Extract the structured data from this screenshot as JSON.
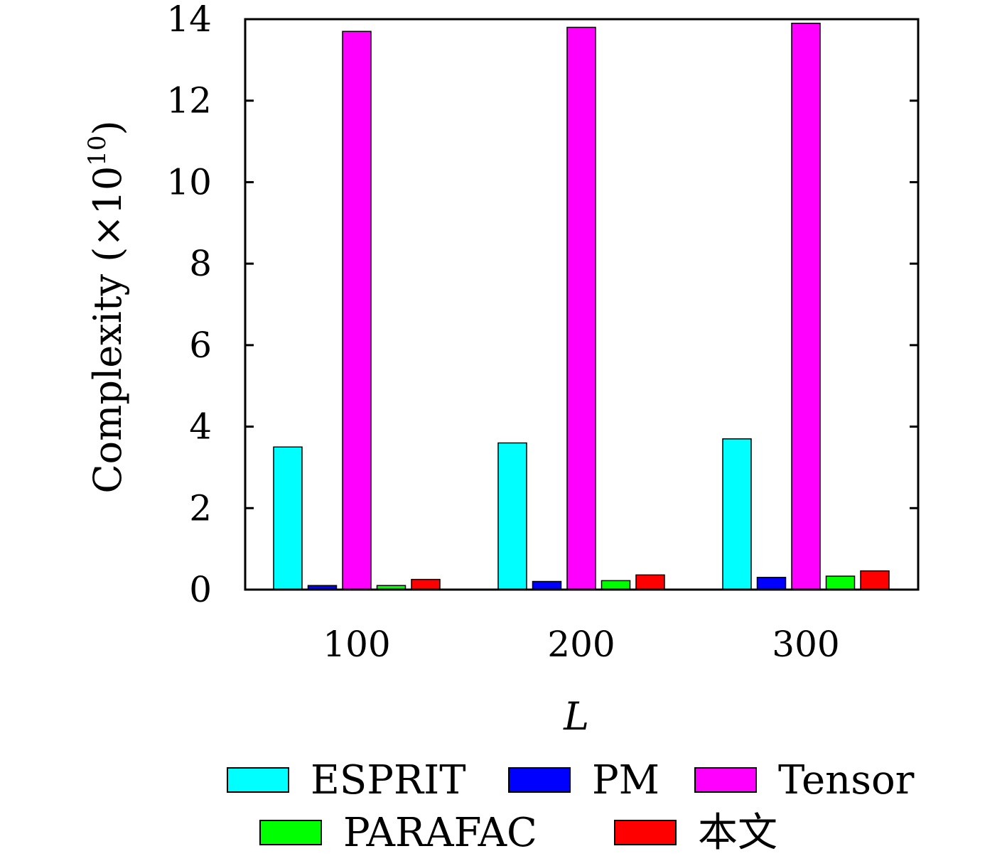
{
  "chart_data": {
    "type": "bar",
    "categories": [
      "100",
      "200",
      "300"
    ],
    "xlabel": "L",
    "ylabel": {
      "text": "Complexity (×10",
      "superscript": "10",
      "suffix": ")"
    },
    "ylim": [
      0,
      14
    ],
    "yticks": [
      0,
      2,
      4,
      6,
      8,
      10,
      12,
      14
    ],
    "grid": false,
    "legend_placement": "bottom",
    "series": [
      {
        "name": "ESPRIT",
        "color": "#00ffff",
        "values": [
          3.5,
          3.6,
          3.7
        ]
      },
      {
        "name": "PM",
        "color": "#0000ff",
        "values": [
          0.1,
          0.2,
          0.3
        ]
      },
      {
        "name": "Tensor",
        "color": "#ff00ff",
        "values": [
          13.7,
          13.8,
          13.9
        ]
      },
      {
        "name": "PARAFAC",
        "color": "#00ff00",
        "values": [
          0.1,
          0.22,
          0.33
        ]
      },
      {
        "name": "本文",
        "color": "#ff0000",
        "values": [
          0.25,
          0.36,
          0.46
        ]
      }
    ]
  }
}
